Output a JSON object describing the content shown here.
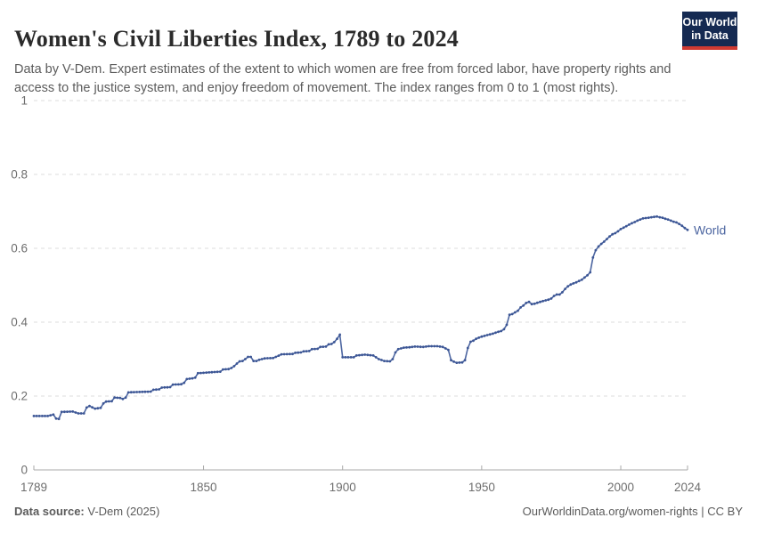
{
  "header": {
    "title": "Women's Civil Liberties Index, 1789 to 2024",
    "subtitle": "Data by V-Dem. Expert estimates of the extent to which women are free from forced labor, have property rights and access to the justice system, and enjoy freedom of movement. The index ranges from 0 to 1 (most rights).",
    "logo": {
      "line1": "Our World",
      "line2": "in Data",
      "bg_color": "#152a52",
      "accent_color": "#cf3a32"
    }
  },
  "footer": {
    "source_label": "Data source:",
    "source_value": " V-Dem (2025)",
    "attribution": "OurWorldinData.org/women-rights | CC BY"
  },
  "chart_data": {
    "type": "line",
    "title": "Women's Civil Liberties Index, 1789 to 2024",
    "xlabel": "",
    "ylabel": "",
    "x_range": [
      1789,
      2024
    ],
    "y_range": [
      0,
      1
    ],
    "x_ticks": [
      1789,
      1850,
      1900,
      1950,
      2000,
      2024
    ],
    "y_ticks": [
      0,
      0.2,
      0.4,
      0.6,
      0.8,
      1
    ],
    "grid": "dashed-horizontal",
    "legend": "end-of-line-label",
    "line_color": "#4d66a1",
    "marker_color": "#3c5695",
    "gridline_color": "#dcdcdc",
    "axis_color": "#a9a9a9",
    "series": [
      {
        "name": "World",
        "points": [
          [
            1789,
            0.146
          ],
          [
            1794,
            0.146
          ],
          [
            1796,
            0.15
          ],
          [
            1797,
            0.139
          ],
          [
            1798,
            0.138
          ],
          [
            1799,
            0.157
          ],
          [
            1803,
            0.158
          ],
          [
            1805,
            0.153
          ],
          [
            1807,
            0.153
          ],
          [
            1808,
            0.169
          ],
          [
            1809,
            0.173
          ],
          [
            1811,
            0.166
          ],
          [
            1813,
            0.168
          ],
          [
            1814,
            0.18
          ],
          [
            1815,
            0.185
          ],
          [
            1817,
            0.186
          ],
          [
            1818,
            0.196
          ],
          [
            1820,
            0.195
          ],
          [
            1821,
            0.192
          ],
          [
            1822,
            0.196
          ],
          [
            1823,
            0.21
          ],
          [
            1831,
            0.212
          ],
          [
            1832,
            0.217
          ],
          [
            1834,
            0.218
          ],
          [
            1835,
            0.223
          ],
          [
            1838,
            0.224
          ],
          [
            1839,
            0.231
          ],
          [
            1842,
            0.232
          ],
          [
            1843,
            0.236
          ],
          [
            1844,
            0.246
          ],
          [
            1846,
            0.248
          ],
          [
            1847,
            0.25
          ],
          [
            1848,
            0.262
          ],
          [
            1852,
            0.264
          ],
          [
            1856,
            0.266
          ],
          [
            1857,
            0.272
          ],
          [
            1859,
            0.273
          ],
          [
            1860,
            0.276
          ],
          [
            1861,
            0.281
          ],
          [
            1862,
            0.288
          ],
          [
            1863,
            0.294
          ],
          [
            1864,
            0.295
          ],
          [
            1865,
            0.3
          ],
          [
            1866,
            0.306
          ],
          [
            1867,
            0.306
          ],
          [
            1868,
            0.295
          ],
          [
            1869,
            0.295
          ],
          [
            1870,
            0.298
          ],
          [
            1872,
            0.302
          ],
          [
            1875,
            0.303
          ],
          [
            1876,
            0.306
          ],
          [
            1878,
            0.313
          ],
          [
            1882,
            0.314
          ],
          [
            1883,
            0.317
          ],
          [
            1885,
            0.318
          ],
          [
            1886,
            0.321
          ],
          [
            1888,
            0.322
          ],
          [
            1889,
            0.327
          ],
          [
            1891,
            0.328
          ],
          [
            1892,
            0.333
          ],
          [
            1894,
            0.334
          ],
          [
            1895,
            0.34
          ],
          [
            1896,
            0.341
          ],
          [
            1897,
            0.346
          ],
          [
            1898,
            0.355
          ],
          [
            1899,
            0.366
          ],
          [
            1900,
            0.305
          ],
          [
            1904,
            0.305
          ],
          [
            1905,
            0.31
          ],
          [
            1908,
            0.312
          ],
          [
            1911,
            0.31
          ],
          [
            1913,
            0.3
          ],
          [
            1915,
            0.295
          ],
          [
            1917,
            0.294
          ],
          [
            1918,
            0.3
          ],
          [
            1919,
            0.318
          ],
          [
            1920,
            0.327
          ],
          [
            1922,
            0.331
          ],
          [
            1924,
            0.332
          ],
          [
            1926,
            0.334
          ],
          [
            1929,
            0.333
          ],
          [
            1931,
            0.335
          ],
          [
            1934,
            0.335
          ],
          [
            1936,
            0.333
          ],
          [
            1937,
            0.329
          ],
          [
            1938,
            0.325
          ],
          [
            1939,
            0.297
          ],
          [
            1940,
            0.293
          ],
          [
            1941,
            0.29
          ],
          [
            1943,
            0.291
          ],
          [
            1944,
            0.297
          ],
          [
            1945,
            0.33
          ],
          [
            1946,
            0.347
          ],
          [
            1947,
            0.35
          ],
          [
            1948,
            0.355
          ],
          [
            1950,
            0.361
          ],
          [
            1952,
            0.365
          ],
          [
            1954,
            0.369
          ],
          [
            1956,
            0.374
          ],
          [
            1957,
            0.376
          ],
          [
            1958,
            0.381
          ],
          [
            1959,
            0.393
          ],
          [
            1960,
            0.42
          ],
          [
            1961,
            0.422
          ],
          [
            1963,
            0.431
          ],
          [
            1964,
            0.44
          ],
          [
            1965,
            0.445
          ],
          [
            1966,
            0.452
          ],
          [
            1967,
            0.455
          ],
          [
            1968,
            0.449
          ],
          [
            1969,
            0.45
          ],
          [
            1971,
            0.455
          ],
          [
            1974,
            0.461
          ],
          [
            1975,
            0.464
          ],
          [
            1976,
            0.471
          ],
          [
            1977,
            0.475
          ],
          [
            1978,
            0.475
          ],
          [
            1979,
            0.481
          ],
          [
            1980,
            0.49
          ],
          [
            1981,
            0.497
          ],
          [
            1982,
            0.502
          ],
          [
            1984,
            0.508
          ],
          [
            1986,
            0.515
          ],
          [
            1988,
            0.527
          ],
          [
            1989,
            0.535
          ],
          [
            1990,
            0.575
          ],
          [
            1991,
            0.595
          ],
          [
            1992,
            0.605
          ],
          [
            1993,
            0.612
          ],
          [
            1994,
            0.618
          ],
          [
            1995,
            0.625
          ],
          [
            1996,
            0.632
          ],
          [
            1997,
            0.638
          ],
          [
            1998,
            0.641
          ],
          [
            1999,
            0.646
          ],
          [
            2000,
            0.652
          ],
          [
            2001,
            0.656
          ],
          [
            2002,
            0.66
          ],
          [
            2003,
            0.664
          ],
          [
            2004,
            0.668
          ],
          [
            2005,
            0.671
          ],
          [
            2006,
            0.675
          ],
          [
            2007,
            0.678
          ],
          [
            2008,
            0.681
          ],
          [
            2010,
            0.683
          ],
          [
            2012,
            0.685
          ],
          [
            2013,
            0.686
          ],
          [
            2014,
            0.684
          ],
          [
            2015,
            0.683
          ],
          [
            2016,
            0.68
          ],
          [
            2017,
            0.678
          ],
          [
            2018,
            0.675
          ],
          [
            2019,
            0.672
          ],
          [
            2020,
            0.67
          ],
          [
            2021,
            0.666
          ],
          [
            2022,
            0.661
          ],
          [
            2023,
            0.655
          ],
          [
            2024,
            0.65
          ]
        ]
      }
    ]
  }
}
